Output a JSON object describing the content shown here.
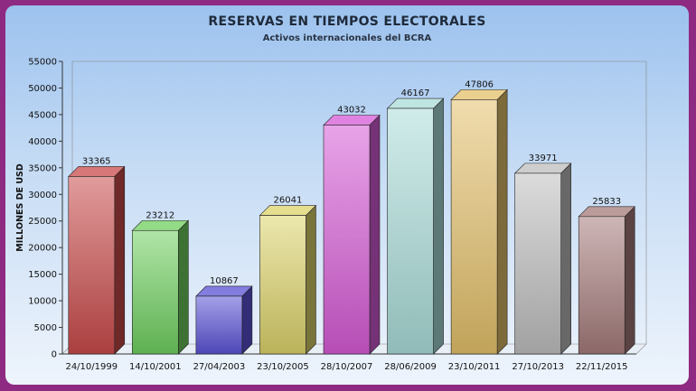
{
  "chart_data": {
    "type": "bar",
    "title": "RESERVAS EN TIEMPOS ELECTORALES",
    "subtitle": "Activos internacionales del BCRA",
    "xlabel": "",
    "ylabel": "MILLONES DE USD",
    "ylim": [
      0,
      55000
    ],
    "yticks": [
      0,
      5000,
      10000,
      15000,
      20000,
      25000,
      30000,
      35000,
      40000,
      45000,
      50000,
      55000
    ],
    "grid": false,
    "legend": "none",
    "categories": [
      "24/10/1999",
      "14/10/2001",
      "27/04/2003",
      "23/10/2005",
      "28/10/2007",
      "28/06/2009",
      "23/10/2011",
      "27/10/2013",
      "22/11/2015"
    ],
    "values": [
      33365,
      23212,
      10867,
      26041,
      43032,
      46167,
      47806,
      33971,
      25833
    ],
    "colors": [
      "#c94a4a",
      "#6fcf5f",
      "#5a52d6",
      "#dcd36a",
      "#d65ad6",
      "#a9dcd8",
      "#e3c06a",
      "#bdbdbd",
      "#a57a7a"
    ]
  }
}
